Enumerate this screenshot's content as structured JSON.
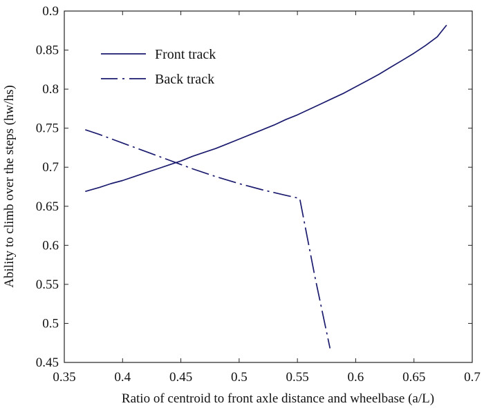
{
  "chart_data": {
    "type": "line",
    "title": "",
    "xlabel": "Ratio of centroid to front axle distance and wheelbase (a/L)",
    "ylabel": "Ability to climb over the steps (hw/hs)",
    "xlim": [
      0.35,
      0.7
    ],
    "ylim": [
      0.45,
      0.9
    ],
    "x_ticks": [
      0.35,
      0.4,
      0.45,
      0.5,
      0.55,
      0.6,
      0.65,
      0.7
    ],
    "y_ticks": [
      0.45,
      0.5,
      0.55,
      0.6,
      0.65,
      0.7,
      0.75,
      0.8,
      0.85,
      0.9
    ],
    "x_tick_labels": [
      "0.35",
      "0.4",
      "0.45",
      "0.5",
      "0.55",
      "0.6",
      "0.65",
      "0.7"
    ],
    "y_tick_labels": [
      "0.45",
      "0.5",
      "0.55",
      "0.6",
      "0.65",
      "0.7",
      "0.75",
      "0.8",
      "0.85",
      "0.9"
    ],
    "grid": false,
    "legend_position": "top-left",
    "line_color": "#1a1a6e",
    "series": [
      {
        "name": "Front track",
        "style": "solid",
        "x": [
          0.368,
          0.38,
          0.39,
          0.4,
          0.41,
          0.42,
          0.43,
          0.44,
          0.45,
          0.46,
          0.47,
          0.48,
          0.49,
          0.5,
          0.51,
          0.52,
          0.53,
          0.54,
          0.55,
          0.56,
          0.57,
          0.58,
          0.59,
          0.6,
          0.61,
          0.62,
          0.63,
          0.64,
          0.65,
          0.66,
          0.67,
          0.678
        ],
        "y": [
          0.669,
          0.674,
          0.679,
          0.683,
          0.688,
          0.693,
          0.698,
          0.703,
          0.708,
          0.714,
          0.719,
          0.724,
          0.73,
          0.736,
          0.742,
          0.748,
          0.754,
          0.761,
          0.767,
          0.774,
          0.781,
          0.788,
          0.795,
          0.803,
          0.811,
          0.819,
          0.828,
          0.837,
          0.846,
          0.856,
          0.867,
          0.882
        ]
      },
      {
        "name": "Back track",
        "style": "dashdot",
        "x": [
          0.368,
          0.38,
          0.4,
          0.42,
          0.44,
          0.46,
          0.48,
          0.5,
          0.52,
          0.54,
          0.552,
          0.565,
          0.578
        ],
        "y": [
          0.748,
          0.742,
          0.731,
          0.72,
          0.709,
          0.698,
          0.688,
          0.679,
          0.671,
          0.664,
          0.66,
          0.56,
          0.468
        ]
      }
    ]
  }
}
